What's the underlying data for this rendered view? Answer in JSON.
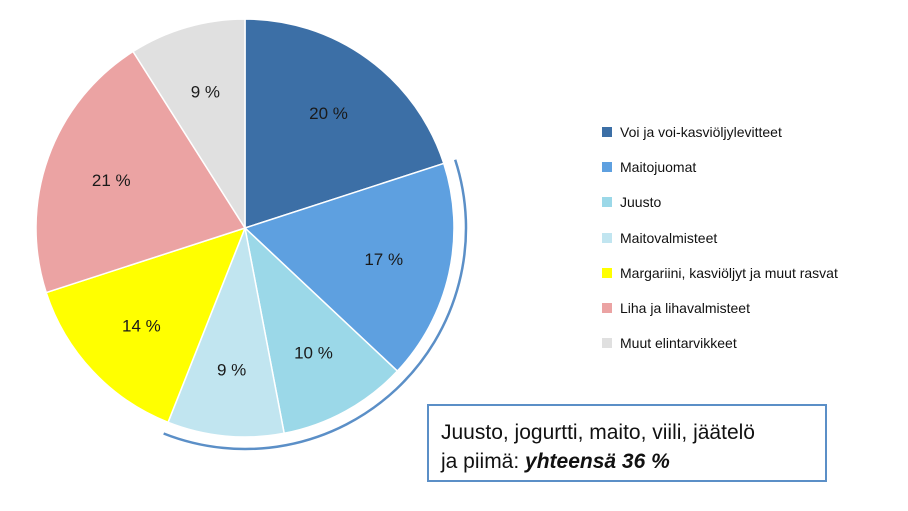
{
  "chart_data": {
    "type": "pie",
    "title": "",
    "slices": [
      {
        "label": "Voi ja voi-kasviöljylevitteet",
        "value": 20,
        "display": "20 %",
        "color": "#3c6fa6"
      },
      {
        "label": "Maitojuomat",
        "value": 17,
        "display": "17 %",
        "color": "#5ea0e0"
      },
      {
        "label": "Juusto",
        "value": 10,
        "display": "10 %",
        "color": "#9bd8e8"
      },
      {
        "label": "Maitovalmisteet",
        "value": 9,
        "display": "9 %",
        "color": "#c1e5f0"
      },
      {
        "label": "Margariini, kasviöljyt ja muut rasvat",
        "value": 14,
        "display": "14 %",
        "color": "#ffff00"
      },
      {
        "label": "Liha ja lihavalmisteet",
        "value": 21,
        "display": "21 %",
        "color": "#eba3a3"
      },
      {
        "label": "Muut elintarvikkeet",
        "value": 9,
        "display": "9 %",
        "color": "#e0e0e0"
      }
    ],
    "legend_position": "right",
    "annotation": {
      "text_line1": "Juusto, jogurtti, maito, viili, jäätelö",
      "text_line2_prefix": "ja piimä: ",
      "text_line2_emphasis": "yhteensä 36 %",
      "bracket_color": "#5b8fc7"
    }
  }
}
